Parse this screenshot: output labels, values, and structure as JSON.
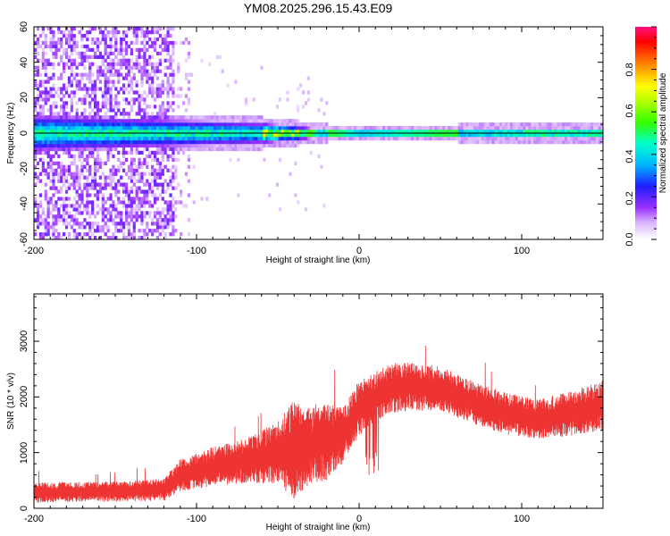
{
  "chart_data": [
    {
      "type": "heatmap",
      "title": "YM08.2025.296.15.43.E09",
      "xlabel": "Height of straight line (km)",
      "ylabel": "Frequency (Hz)",
      "xlim": [
        -200,
        150
      ],
      "ylim": [
        -60,
        60
      ],
      "x_ticks": [
        "-200",
        "-100",
        "0",
        "100"
      ],
      "y_ticks": [
        "60",
        "40",
        "20",
        "0",
        "-20",
        "-40",
        "-60"
      ],
      "colorbar": {
        "label": "Normalized spectral amplitude",
        "range": [
          0,
          1
        ],
        "ticks": [
          "0.0",
          "0.2",
          "0.4",
          "0.6",
          "0.8"
        ]
      },
      "description_of_data": {
        "noise_region_x": [
          -200,
          -115
        ],
        "signal_band_center_hz": 0,
        "band_half_width_hz": [
          [
            -120,
            8
          ],
          [
            -60,
            6
          ],
          [
            -20,
            2
          ],
          [
            0,
            1.5
          ],
          [
            60,
            2
          ],
          [
            100,
            3
          ],
          [
            150,
            3
          ]
        ],
        "peak_amplitude_region_x": [
          -40,
          60
        ]
      }
    },
    {
      "type": "line",
      "xlabel": "Height of straight line (km)",
      "ylabel": "SNR (10 * v/v)",
      "xlim": [
        -200,
        150
      ],
      "ylim": [
        0,
        3850
      ],
      "x_ticks": [
        "-200",
        "-100",
        "0",
        "100"
      ],
      "y_ticks": [
        "0",
        "1000",
        "2000",
        "3000"
      ],
      "series_color": "#ee3333",
      "envelope_km_vs_snr": {
        "x": [
          -200,
          -150,
          -120,
          -110,
          -90,
          -70,
          -50,
          -40,
          -30,
          -20,
          -10,
          0,
          10,
          20,
          30,
          50,
          70,
          90,
          110,
          130,
          150
        ],
        "base": [
          280,
          300,
          330,
          600,
          750,
          850,
          1000,
          1050,
          1150,
          1200,
          1300,
          1800,
          2000,
          2150,
          2200,
          2150,
          1900,
          1700,
          1600,
          1700,
          1850
        ],
        "amplitude": [
          180,
          180,
          200,
          300,
          350,
          400,
          550,
          900,
          700,
          700,
          500,
          500,
          450,
          450,
          450,
          400,
          380,
          380,
          350,
          400,
          450
        ]
      }
    }
  ]
}
